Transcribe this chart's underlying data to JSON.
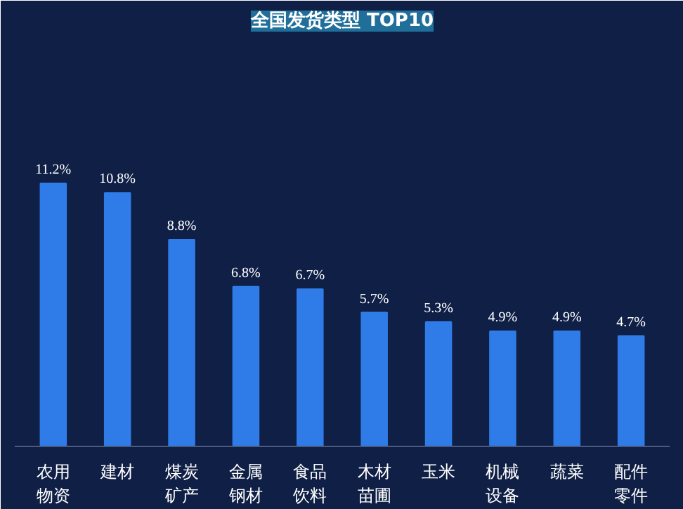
{
  "chart_data": {
    "type": "bar",
    "title": "全国发货类型 TOP10",
    "categories": [
      "农用物资",
      "建材",
      "煤炭矿产",
      "金属钢材",
      "食品饮料",
      "木材苗圃",
      "玉米",
      "机械设备",
      "蔬菜",
      "配件零件"
    ],
    "values": [
      11.2,
      10.8,
      8.8,
      6.8,
      6.7,
      5.7,
      5.3,
      4.9,
      4.9,
      4.7
    ],
    "value_labels": [
      "11.2%",
      "10.8%",
      "8.8%",
      "6.8%",
      "6.7%",
      "5.7%",
      "5.3%",
      "4.9%",
      "4.9%",
      "4.7%"
    ],
    "color": "#2f7ce8",
    "tick_labels": "x",
    "grid": false
  }
}
